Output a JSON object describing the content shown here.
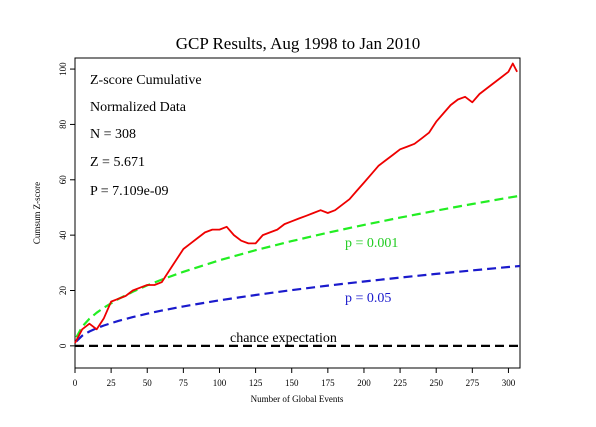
{
  "chart_data": {
    "type": "line",
    "title": "GCP Results, Aug 1998 to Jan 2010",
    "xlabel": "Number of Global Events",
    "ylabel": "Cumsum Z-score",
    "xlim": [
      0,
      308
    ],
    "ylim": [
      -8,
      104
    ],
    "x_ticks": [
      0,
      25,
      50,
      75,
      100,
      125,
      150,
      175,
      200,
      225,
      250,
      275,
      300
    ],
    "y_ticks": [
      0,
      20,
      40,
      60,
      80,
      100
    ],
    "stats": [
      "Z-score Cumulative",
      "Normalized Data",
      "N = 308",
      "Z = 5.671",
      "P = 7.109e-09"
    ],
    "series": [
      {
        "name": "cumulative",
        "color": "#ee0000",
        "style": "solid",
        "x": [
          0,
          5,
          10,
          15,
          20,
          25,
          30,
          35,
          40,
          45,
          50,
          55,
          60,
          65,
          70,
          75,
          80,
          85,
          90,
          95,
          100,
          105,
          110,
          115,
          120,
          125,
          130,
          135,
          140,
          145,
          150,
          155,
          160,
          165,
          170,
          175,
          180,
          185,
          190,
          195,
          200,
          205,
          210,
          215,
          220,
          225,
          230,
          235,
          240,
          245,
          250,
          255,
          260,
          265,
          270,
          275,
          280,
          285,
          290,
          295,
          300,
          303,
          306
        ],
        "y": [
          1,
          6,
          8,
          6,
          10,
          16,
          17,
          18,
          20,
          21,
          22,
          22,
          23,
          27,
          31,
          35,
          37,
          39,
          41,
          42,
          42,
          43,
          40,
          38,
          37,
          37,
          40,
          41,
          42,
          44,
          45,
          46,
          47,
          48,
          49,
          48,
          49,
          51,
          53,
          56,
          59,
          62,
          65,
          67,
          69,
          71,
          72,
          73,
          75,
          77,
          81,
          84,
          87,
          89,
          90,
          88,
          91,
          93,
          95,
          97,
          99,
          102,
          99
        ]
      },
      {
        "name": "p = 0.001",
        "color": "#22ee22",
        "style": "dashed",
        "x": [
          1,
          5,
          10,
          15,
          20,
          30,
          40,
          50,
          60,
          75,
          100,
          125,
          150,
          175,
          200,
          225,
          250,
          275,
          300,
          308
        ],
        "y": [
          3.09,
          6.91,
          9.77,
          11.97,
          13.82,
          16.93,
          19.54,
          21.85,
          23.94,
          26.76,
          30.9,
          34.55,
          37.85,
          40.88,
          43.7,
          46.35,
          48.86,
          51.24,
          53.52,
          54.23
        ]
      },
      {
        "name": "p = 0.05",
        "color": "#1a1acc",
        "style": "dashed",
        "x": [
          1,
          5,
          10,
          15,
          20,
          30,
          40,
          50,
          60,
          75,
          100,
          125,
          150,
          175,
          200,
          225,
          250,
          275,
          300,
          308
        ],
        "y": [
          1.64,
          3.68,
          5.2,
          6.37,
          7.36,
          9.01,
          10.4,
          11.63,
          12.74,
          14.24,
          16.45,
          18.39,
          20.14,
          21.76,
          23.26,
          24.67,
          26.0,
          27.27,
          28.48,
          28.86
        ]
      },
      {
        "name": "chance expectation",
        "color": "#000000",
        "style": "dashed",
        "x": [
          0,
          308
        ],
        "y": [
          0,
          0
        ]
      }
    ]
  }
}
